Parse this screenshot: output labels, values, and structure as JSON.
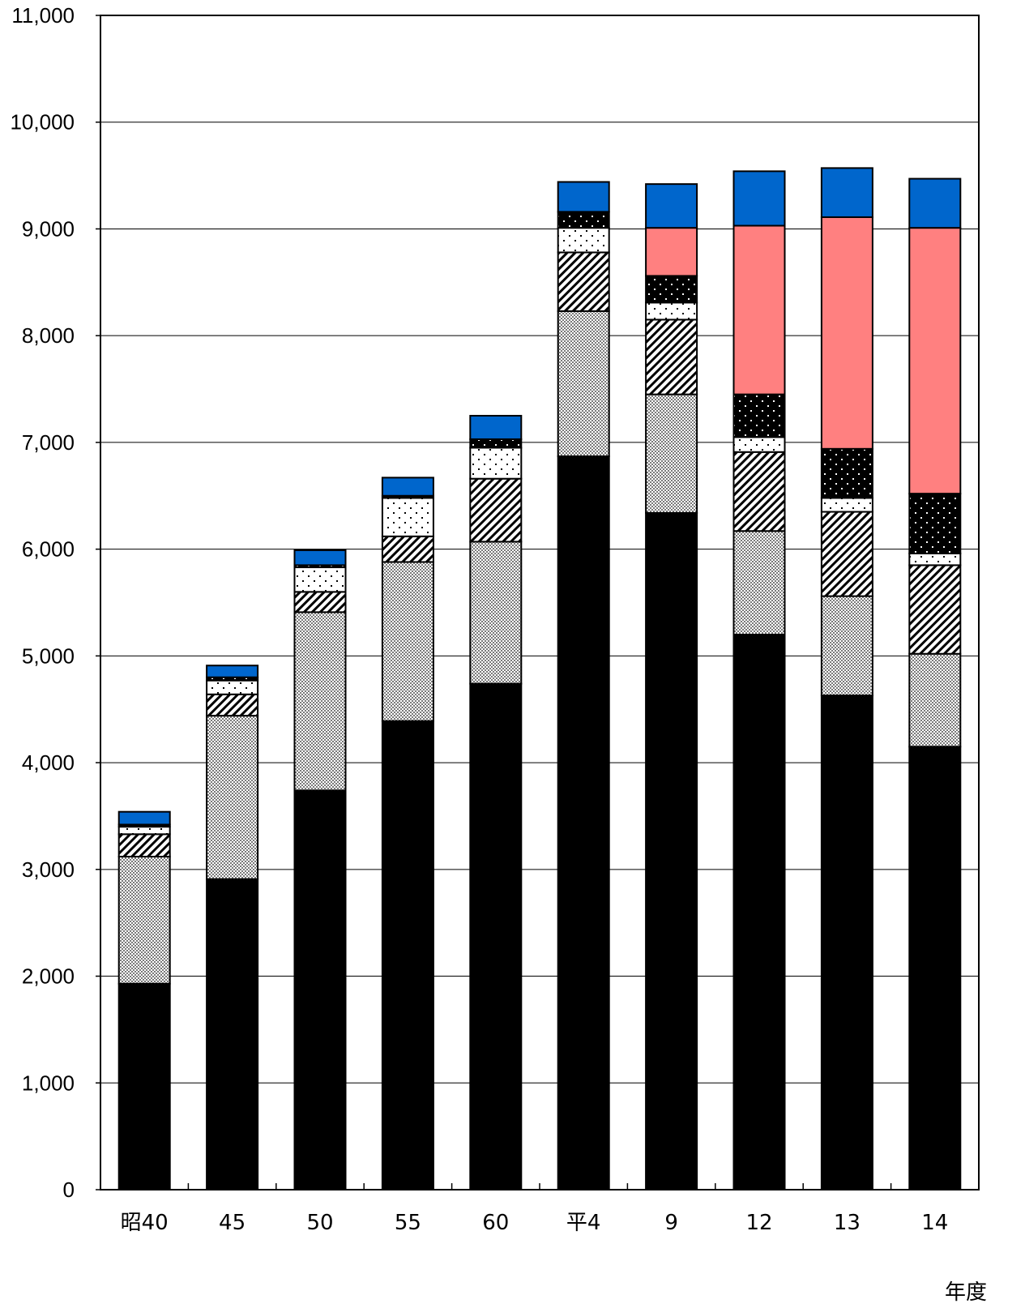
{
  "chart_data": {
    "type": "bar",
    "stacked": true,
    "title": "",
    "xlabel": "",
    "ylabel": "",
    "x_unit_label": "年度",
    "ylim": [
      0,
      11000
    ],
    "yticks": [
      0,
      1000,
      2000,
      3000,
      4000,
      5000,
      6000,
      7000,
      8000,
      9000,
      10000,
      11000
    ],
    "ytick_labels": [
      "0",
      "1,000",
      "2,000",
      "3,000",
      "4,000",
      "5,000",
      "6,000",
      "7,000",
      "8,000",
      "9,000",
      "10,000",
      "11,000"
    ],
    "grid": true,
    "legend": "none",
    "categories": [
      "昭40",
      "45",
      "50",
      "55",
      "60",
      "平4",
      "9",
      "12",
      "13",
      "14"
    ],
    "series": [
      {
        "pattern": "solid-black",
        "color": "#000000",
        "values": [
          1930,
          2910,
          3740,
          4390,
          4740,
          6870,
          6340,
          5200,
          4630,
          4150
        ]
      },
      {
        "pattern": "fine-dots",
        "color": "#9a9a9a",
        "values": [
          1190,
          1530,
          1670,
          1490,
          1330,
          1360,
          1110,
          970,
          930,
          870
        ]
      },
      {
        "pattern": "diagonal-hatch",
        "color": "#000000",
        "values": [
          210,
          200,
          190,
          240,
          590,
          550,
          700,
          740,
          790,
          830
        ]
      },
      {
        "pattern": "sparse-dots-white",
        "color": "#ffffff",
        "values": [
          70,
          130,
          230,
          360,
          290,
          230,
          160,
          140,
          130,
          110
        ]
      },
      {
        "pattern": "dots-on-black",
        "color": "#000000",
        "values": [
          20,
          30,
          20,
          20,
          80,
          150,
          250,
          400,
          460,
          560
        ]
      },
      {
        "pattern": "solid",
        "color": "#ff8080",
        "values": [
          0,
          0,
          0,
          0,
          0,
          0,
          450,
          1580,
          2170,
          2490
        ]
      },
      {
        "pattern": "solid",
        "color": "#0066cc",
        "values": [
          120,
          110,
          140,
          170,
          220,
          280,
          410,
          510,
          460,
          460
        ]
      }
    ]
  }
}
